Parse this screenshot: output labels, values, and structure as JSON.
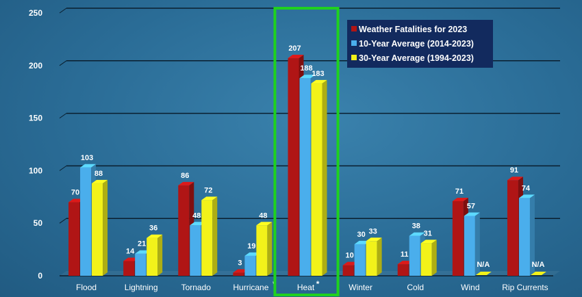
{
  "chart_data": {
    "type": "bar",
    "title": "",
    "xlabel": "",
    "ylabel": "",
    "ylim": [
      0,
      250
    ],
    "yticks": [
      "0",
      "50",
      "100",
      "150",
      "200",
      "250"
    ],
    "grid": true,
    "legend_position": "top-right",
    "categories": [
      "Flood",
      "Lightning",
      "Tornado",
      "Hurricane",
      "Heat",
      "Winter",
      "Cold",
      "Wind",
      "Rip Currents"
    ],
    "category_marks": [
      "",
      "",
      "",
      "*",
      "*",
      "",
      "",
      "",
      ""
    ],
    "series": [
      {
        "name": "Weather Fatalities for 2023",
        "color": "#b01515",
        "values": [
          70,
          14,
          86,
          3,
          207,
          10,
          11,
          71,
          91
        ],
        "labels": [
          "70",
          "14",
          "86",
          "3",
          "207",
          "10",
          "11",
          "71",
          "91"
        ]
      },
      {
        "name": "10-Year Average (2014-2023)",
        "color": "#4aaeec",
        "values": [
          103,
          21,
          48,
          19,
          188,
          30,
          38,
          57,
          74
        ],
        "labels": [
          "103",
          "21",
          "48",
          "19",
          "188",
          "30",
          "38",
          "57",
          "74"
        ]
      },
      {
        "name": "30-Year Average (1994-2023)",
        "color": "#f2f21a",
        "values": [
          88,
          36,
          72,
          48,
          183,
          33,
          31,
          null,
          null
        ],
        "labels": [
          "88",
          "36",
          "72",
          "48",
          "183",
          "33",
          "31",
          "N/A",
          "N/A"
        ]
      }
    ],
    "highlight": {
      "category": "Heat",
      "color": "#1fd11f"
    }
  }
}
